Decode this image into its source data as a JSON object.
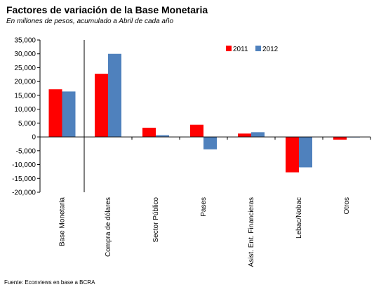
{
  "header": {
    "title": "Factores de variación de la Base Monetaria",
    "subtitle": "En millones de pesos, acumulado a Abril de cada año"
  },
  "footer": {
    "source": "Fuente: Econviews en base a BCRA"
  },
  "chart_data": {
    "type": "bar",
    "title": "Factores de variación de la Base Monetaria",
    "subtitle": "En millones de pesos, acumulado a Abril de cada año",
    "categories": [
      "Base Monetaria",
      "Compra de dólares",
      "Sector Público",
      "Pases",
      "Asist. Ent. Financieras",
      "Lebac/Nobac",
      "Otros"
    ],
    "series": [
      {
        "name": "2011",
        "color": "#ff0000",
        "values": [
          17200,
          22800,
          3300,
          4400,
          1200,
          -12800,
          -1000
        ]
      },
      {
        "name": "2012",
        "color": "#4f81bd",
        "values": [
          16400,
          30000,
          600,
          -4500,
          1700,
          -11000,
          -200
        ]
      }
    ],
    "ylim": [
      -20000,
      35000
    ],
    "yticks": [
      35000,
      30000,
      25000,
      20000,
      15000,
      10000,
      5000,
      0,
      -5000,
      -10000,
      -15000,
      -20000
    ],
    "ytick_labels": [
      "35,000",
      "30,000",
      "25,000",
      "20,000",
      "15,000",
      "10,000",
      "5,000",
      "0",
      "-5,000",
      "-10,000",
      "-15,000",
      "-20,000"
    ],
    "grid": false,
    "legend_position": "top-right"
  }
}
